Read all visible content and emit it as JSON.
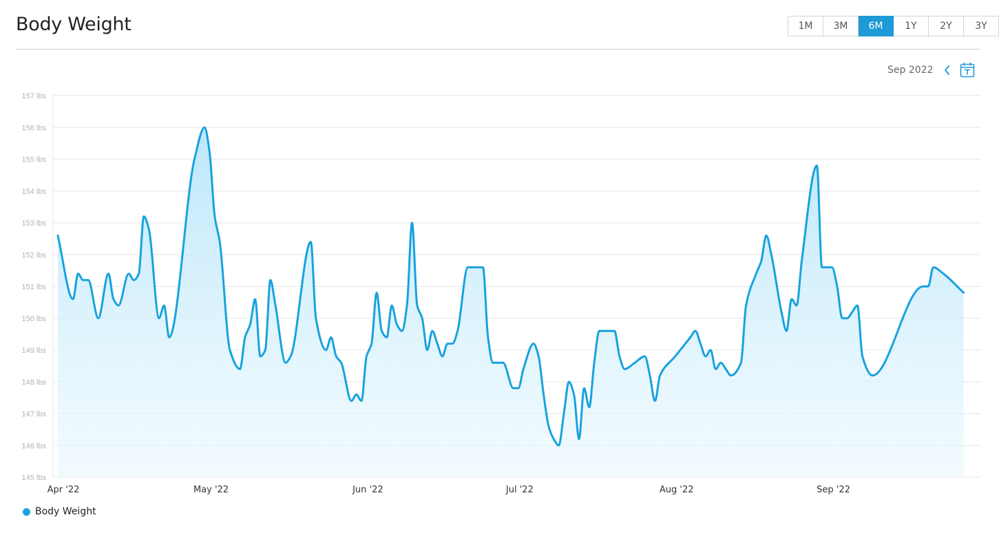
{
  "header": {
    "title": "Body Weight"
  },
  "range_selector": {
    "options": [
      {
        "label": "1M",
        "active": false
      },
      {
        "label": "3M",
        "active": false
      },
      {
        "label": "6M",
        "active": true
      },
      {
        "label": "1Y",
        "active": false
      },
      {
        "label": "2Y",
        "active": false
      },
      {
        "label": "3Y",
        "active": false
      }
    ]
  },
  "period": {
    "label": "Sep 2022"
  },
  "icons": {
    "prev": "chevron-left-icon",
    "calendar": "calendar-today-icon"
  },
  "colors": {
    "accent": "#1e9ad6",
    "line": "#17a2dd",
    "fill": "#c8ecfb"
  },
  "legend": {
    "label": "Body Weight"
  },
  "chart_data": {
    "type": "area",
    "ylim": [
      145,
      157
    ],
    "y_tick_labels": [
      "157 lbs",
      "156 lbs",
      "155 lbs",
      "154 lbs",
      "153 lbs",
      "152 lbs",
      "151 lbs",
      "150 lbs",
      "149 lbs",
      "148 lbs",
      "147 lbs",
      "146 lbs",
      "145 lbs"
    ],
    "x_tick_labels": [
      "Apr '22",
      "May '22",
      "Jun '22",
      "Jul '22",
      "Aug '22",
      "Sep '22"
    ],
    "grid": true,
    "legend_position": "bottom-left",
    "series": [
      {
        "name": "Body Weight",
        "points": [
          [
            "2022-04-01",
            152.6
          ],
          [
            "2022-04-04",
            150.6
          ],
          [
            "2022-04-05",
            151.4
          ],
          [
            "2022-04-06",
            151.2
          ],
          [
            "2022-04-07",
            151.2
          ],
          [
            "2022-04-09",
            150.0
          ],
          [
            "2022-04-11",
            151.4
          ],
          [
            "2022-04-12",
            150.6
          ],
          [
            "2022-04-13",
            150.4
          ],
          [
            "2022-04-15",
            151.4
          ],
          [
            "2022-04-16",
            151.2
          ],
          [
            "2022-04-17",
            151.4
          ],
          [
            "2022-04-18",
            153.2
          ],
          [
            "2022-04-19",
            152.8
          ],
          [
            "2022-04-21",
            150.0
          ],
          [
            "2022-04-22",
            150.4
          ],
          [
            "2022-04-23",
            149.4
          ],
          [
            "2022-04-28",
            155.0
          ],
          [
            "2022-04-30",
            156.0
          ],
          [
            "2022-05-01",
            155.2
          ],
          [
            "2022-05-02",
            153.2
          ],
          [
            "2022-05-03",
            152.4
          ],
          [
            "2022-05-05",
            149.0
          ],
          [
            "2022-05-07",
            148.4
          ],
          [
            "2022-05-08",
            149.4
          ],
          [
            "2022-05-09",
            149.8
          ],
          [
            "2022-05-10",
            150.6
          ],
          [
            "2022-05-11",
            148.8
          ],
          [
            "2022-05-12",
            149.0
          ],
          [
            "2022-05-13",
            151.2
          ],
          [
            "2022-05-14",
            150.4
          ],
          [
            "2022-05-16",
            148.6
          ],
          [
            "2022-05-17",
            148.8
          ],
          [
            "2022-05-21",
            152.4
          ],
          [
            "2022-05-22",
            150.0
          ],
          [
            "2022-05-24",
            149.0
          ],
          [
            "2022-05-25",
            149.4
          ],
          [
            "2022-05-26",
            148.8
          ],
          [
            "2022-05-27",
            148.6
          ],
          [
            "2022-05-29",
            147.4
          ],
          [
            "2022-05-30",
            147.6
          ],
          [
            "2022-05-31",
            147.4
          ],
          [
            "2022-06-01",
            148.8
          ],
          [
            "2022-06-02",
            149.2
          ],
          [
            "2022-06-03",
            150.8
          ],
          [
            "2022-06-04",
            149.6
          ],
          [
            "2022-06-05",
            149.4
          ],
          [
            "2022-06-06",
            150.4
          ],
          [
            "2022-06-07",
            149.8
          ],
          [
            "2022-06-08",
            149.6
          ],
          [
            "2022-06-09",
            150.4
          ],
          [
            "2022-06-10",
            153.0
          ],
          [
            "2022-06-11",
            150.4
          ],
          [
            "2022-06-12",
            150.0
          ],
          [
            "2022-06-13",
            149.0
          ],
          [
            "2022-06-14",
            149.6
          ],
          [
            "2022-06-15",
            149.2
          ],
          [
            "2022-06-16",
            148.8
          ],
          [
            "2022-06-17",
            149.2
          ],
          [
            "2022-06-18",
            149.2
          ],
          [
            "2022-06-19",
            149.6
          ],
          [
            "2022-06-21",
            151.6
          ],
          [
            "2022-06-24",
            151.6
          ],
          [
            "2022-06-25",
            149.4
          ],
          [
            "2022-06-26",
            148.6
          ],
          [
            "2022-06-28",
            148.6
          ],
          [
            "2022-06-30",
            147.8
          ],
          [
            "2022-07-01",
            147.8
          ],
          [
            "2022-07-02",
            148.4
          ],
          [
            "2022-07-04",
            149.2
          ],
          [
            "2022-07-05",
            148.8
          ],
          [
            "2022-07-06",
            147.6
          ],
          [
            "2022-07-07",
            146.6
          ],
          [
            "2022-07-08",
            146.2
          ],
          [
            "2022-07-09",
            146.0
          ],
          [
            "2022-07-10",
            147.0
          ],
          [
            "2022-07-11",
            148.0
          ],
          [
            "2022-07-12",
            147.6
          ],
          [
            "2022-07-13",
            146.2
          ],
          [
            "2022-07-14",
            147.8
          ],
          [
            "2022-07-15",
            147.2
          ],
          [
            "2022-07-16",
            148.6
          ],
          [
            "2022-07-17",
            149.6
          ],
          [
            "2022-07-20",
            149.6
          ],
          [
            "2022-07-21",
            148.8
          ],
          [
            "2022-07-22",
            148.4
          ],
          [
            "2022-07-24",
            148.6
          ],
          [
            "2022-07-26",
            148.8
          ],
          [
            "2022-07-27",
            148.2
          ],
          [
            "2022-07-28",
            147.4
          ],
          [
            "2022-07-29",
            148.2
          ],
          [
            "2022-08-01",
            148.8
          ],
          [
            "2022-08-04",
            149.4
          ],
          [
            "2022-08-05",
            149.6
          ],
          [
            "2022-08-06",
            149.2
          ],
          [
            "2022-08-07",
            148.8
          ],
          [
            "2022-08-08",
            149.0
          ],
          [
            "2022-08-09",
            148.4
          ],
          [
            "2022-08-10",
            148.6
          ],
          [
            "2022-08-11",
            148.4
          ],
          [
            "2022-08-12",
            148.2
          ],
          [
            "2022-08-14",
            148.6
          ],
          [
            "2022-08-15",
            150.4
          ],
          [
            "2022-08-17",
            151.4
          ],
          [
            "2022-08-18",
            151.8
          ],
          [
            "2022-08-19",
            152.6
          ],
          [
            "2022-08-20",
            152.0
          ],
          [
            "2022-08-22",
            150.2
          ],
          [
            "2022-08-23",
            149.6
          ],
          [
            "2022-08-24",
            150.6
          ],
          [
            "2022-08-25",
            150.4
          ],
          [
            "2022-08-26",
            151.8
          ],
          [
            "2022-08-29",
            154.8
          ],
          [
            "2022-08-30",
            151.6
          ],
          [
            "2022-09-01",
            151.6
          ],
          [
            "2022-09-02",
            151.0
          ],
          [
            "2022-09-03",
            150.0
          ],
          [
            "2022-09-04",
            150.0
          ],
          [
            "2022-09-05",
            150.2
          ],
          [
            "2022-09-06",
            150.4
          ],
          [
            "2022-09-07",
            148.8
          ],
          [
            "2022-09-09",
            148.2
          ],
          [
            "2022-09-19",
            151.0
          ],
          [
            "2022-09-20",
            151.0
          ],
          [
            "2022-09-21",
            151.6
          ],
          [
            "2022-09-23",
            151.4
          ],
          [
            "2022-09-27",
            150.8
          ]
        ]
      }
    ]
  }
}
